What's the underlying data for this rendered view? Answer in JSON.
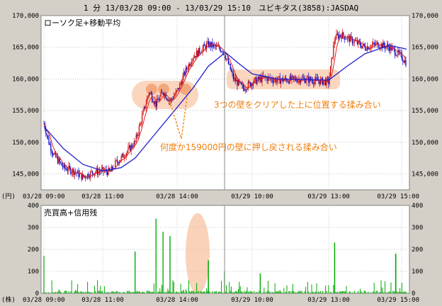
{
  "header": {
    "title": "1 分 13/03/28 09:00 - 13/03/29 15:10　ユビキタス(3858):JASDAQ"
  },
  "price_panel": {
    "title": "ローソク足+移動平均",
    "unit_label": "(円)"
  },
  "volume_panel": {
    "title": "売買高+信用残",
    "unit_label": "(株)"
  },
  "annotations": [
    {
      "text": "3つの壁をクリアした上に位置する揉み合い"
    },
    {
      "text": "何度か159000円の壁に押し戻される揉み合い"
    }
  ],
  "colors": {
    "up": "#cc0000",
    "down": "#0000cc",
    "ma_short": "#e02020",
    "ma_long": "#2020d0",
    "volume": "#00aa00",
    "highlight": "#f5b48a",
    "annotation": "#f08010"
  },
  "chart_data": [
    {
      "type": "candlestick",
      "title": "ローソク足+移動平均",
      "y_unit": "円",
      "ylim": [
        142500,
        170000
      ],
      "yticks": [
        145000,
        150000,
        155000,
        160000,
        165000,
        170000
      ],
      "ytick_labels": [
        "145,000",
        "150,000",
        "155,000",
        "160,000",
        "165,000",
        "170,000"
      ],
      "x_labels": [
        "03/28 09:00",
        "03/28 11:00",
        "03/28 14:00",
        "03/29 10:00",
        "03/29 13:00",
        "03/29 15:00"
      ],
      "grid": true,
      "session_divider": "03/29 09:00",
      "close_path": [
        {
          "t": "03/28 09:00",
          "price": 153000
        },
        {
          "t": "03/28 09:10",
          "price": 150000
        },
        {
          "t": "03/28 09:20",
          "price": 148000
        },
        {
          "t": "03/28 09:40",
          "price": 146000
        },
        {
          "t": "03/28 10:00",
          "price": 145500
        },
        {
          "t": "03/28 10:20",
          "price": 144500
        },
        {
          "t": "03/28 10:40",
          "price": 145300
        },
        {
          "t": "03/28 11:00",
          "price": 145500
        },
        {
          "t": "03/28 11:20",
          "price": 145300
        },
        {
          "t": "03/28 11:30",
          "price": 146500
        },
        {
          "t": "03/28 12:40",
          "price": 147500
        },
        {
          "t": "03/28 13:00",
          "price": 150000
        },
        {
          "t": "03/28 13:10",
          "price": 154000
        },
        {
          "t": "03/28 13:20",
          "price": 158000
        },
        {
          "t": "03/28 13:30",
          "price": 156000
        },
        {
          "t": "03/28 13:40",
          "price": 158000
        },
        {
          "t": "03/28 13:50",
          "price": 156500
        },
        {
          "t": "03/28 14:00",
          "price": 158000
        },
        {
          "t": "03/28 14:10",
          "price": 161000
        },
        {
          "t": "03/28 14:20",
          "price": 163500
        },
        {
          "t": "03/28 14:30",
          "price": 164500
        },
        {
          "t": "03/28 14:40",
          "price": 165500
        },
        {
          "t": "03/28 15:00",
          "price": 164500
        },
        {
          "t": "03/29 09:00",
          "price": 164000
        },
        {
          "t": "03/29 09:10",
          "price": 162000
        },
        {
          "t": "03/29 09:20",
          "price": 160000
        },
        {
          "t": "03/29 09:40",
          "price": 158500
        },
        {
          "t": "03/29 10:00",
          "price": 159500
        },
        {
          "t": "03/29 10:30",
          "price": 160200
        },
        {
          "t": "03/29 11:00",
          "price": 159800
        },
        {
          "t": "03/29 12:40",
          "price": 160000
        },
        {
          "t": "03/29 13:00",
          "price": 159500
        },
        {
          "t": "03/29 13:10",
          "price": 166500
        },
        {
          "t": "03/29 13:20",
          "price": 167000
        },
        {
          "t": "03/29 13:40",
          "price": 166000
        },
        {
          "t": "03/29 14:00",
          "price": 165000
        },
        {
          "t": "03/29 14:20",
          "price": 165500
        },
        {
          "t": "03/29 14:40",
          "price": 165000
        },
        {
          "t": "03/29 15:00",
          "price": 163500
        },
        {
          "t": "03/29 15:10",
          "price": 162500
        }
      ],
      "ma_long_path": [
        {
          "t": "03/28 09:00",
          "price": 152500
        },
        {
          "t": "03/28 09:40",
          "price": 149000
        },
        {
          "t": "03/28 10:20",
          "price": 146500
        },
        {
          "t": "03/28 11:00",
          "price": 145500
        },
        {
          "t": "03/28 12:40",
          "price": 146000
        },
        {
          "t": "03/28 13:00",
          "price": 147500
        },
        {
          "t": "03/28 13:30",
          "price": 151500
        },
        {
          "t": "03/28 14:00",
          "price": 155500
        },
        {
          "t": "03/28 14:20",
          "price": 158500
        },
        {
          "t": "03/28 14:40",
          "price": 162000
        },
        {
          "t": "03/28 15:00",
          "price": 164000
        },
        {
          "t": "03/29 09:00",
          "price": 164300
        },
        {
          "t": "03/29 09:30",
          "price": 162500
        },
        {
          "t": "03/29 10:00",
          "price": 160800
        },
        {
          "t": "03/29 11:00",
          "price": 160000
        },
        {
          "t": "03/29 13:00",
          "price": 159800
        },
        {
          "t": "03/29 13:30",
          "price": 162000
        },
        {
          "t": "03/29 14:00",
          "price": 164000
        },
        {
          "t": "03/29 14:40",
          "price": 165300
        },
        {
          "t": "03/29 15:10",
          "price": 164700
        }
      ]
    },
    {
      "type": "bar",
      "title": "売買高+信用残",
      "y_unit": "株",
      "ylim": [
        0,
        400
      ],
      "yticks": [
        0,
        100,
        200,
        300,
        400
      ],
      "x_labels": [
        "03/28 09:00",
        "03/28 11:00",
        "03/28 14:00",
        "03/29 10:00",
        "03/29 13:00",
        "03/29 15:00"
      ],
      "series_name": "売買高",
      "notable_spikes": [
        {
          "t": "03/28 09:00",
          "value": 170
        },
        {
          "t": "03/28 13:00",
          "value": 190
        },
        {
          "t": "03/28 13:30",
          "value": 340
        },
        {
          "t": "03/28 13:40",
          "value": 280
        },
        {
          "t": "03/28 13:50",
          "value": 260
        },
        {
          "t": "03/28 14:40",
          "value": 150
        },
        {
          "t": "03/29 09:00",
          "value": 100
        },
        {
          "t": "03/29 10:20",
          "value": 90
        },
        {
          "t": "03/29 13:10",
          "value": 230
        },
        {
          "t": "03/29 14:50",
          "value": 180
        }
      ]
    }
  ]
}
